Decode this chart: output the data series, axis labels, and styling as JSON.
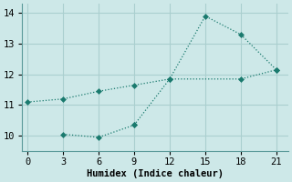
{
  "xlabel": "Humidex (Indice chaleur)",
  "background_color": "#cde8e8",
  "grid_color": "#aacfcf",
  "line_color": "#1a7a6e",
  "xlim": [
    -0.5,
    22
  ],
  "ylim": [
    9.5,
    14.3
  ],
  "xticks": [
    0,
    3,
    6,
    9,
    12,
    15,
    18,
    21
  ],
  "yticks": [
    10,
    11,
    12,
    13,
    14
  ],
  "line1_x": [
    0,
    3,
    6,
    9,
    12,
    15,
    18,
    21
  ],
  "line1_y": [
    11.1,
    11.2,
    11.45,
    11.65,
    11.85,
    13.9,
    13.3,
    12.15
  ],
  "line2_x": [
    3,
    6,
    9
  ],
  "line2_y": [
    10.05,
    9.95,
    10.35
  ],
  "line3_x": [
    9,
    12,
    18,
    21
  ],
  "line3_y": [
    10.35,
    11.85,
    11.85,
    12.15
  ]
}
